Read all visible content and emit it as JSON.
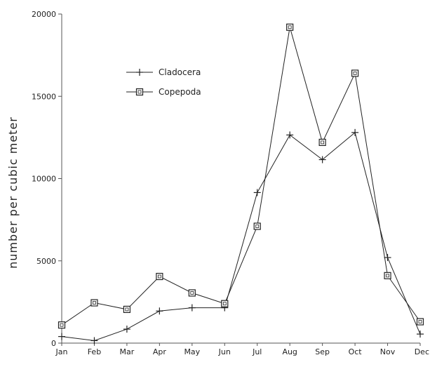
{
  "chart_data": {
    "type": "line",
    "categories": [
      "Jan",
      "Feb",
      "Mar",
      "Apr",
      "May",
      "Jun",
      "Jul",
      "Aug",
      "Sep",
      "Oct",
      "Nov",
      "Dec"
    ],
    "ylabel": "number per cubic meter",
    "xlabel": "",
    "title": "",
    "ylim": [
      0,
      20000
    ],
    "yticks": [
      "0",
      "5000",
      "10000",
      "15000",
      "20000"
    ],
    "grid": false,
    "legend_position": "top-left",
    "series": [
      {
        "name": "Cladocera",
        "marker": "plus",
        "color": "#222222",
        "values": [
          400,
          150,
          850,
          1950,
          2150,
          2150,
          9150,
          12650,
          11150,
          12800,
          5200,
          550
        ]
      },
      {
        "name": "Copepoda",
        "marker": "square",
        "color": "#222222",
        "values": [
          1100,
          2450,
          2050,
          4050,
          3050,
          2400,
          7100,
          19200,
          12200,
          16400,
          4100,
          1300
        ]
      }
    ]
  }
}
